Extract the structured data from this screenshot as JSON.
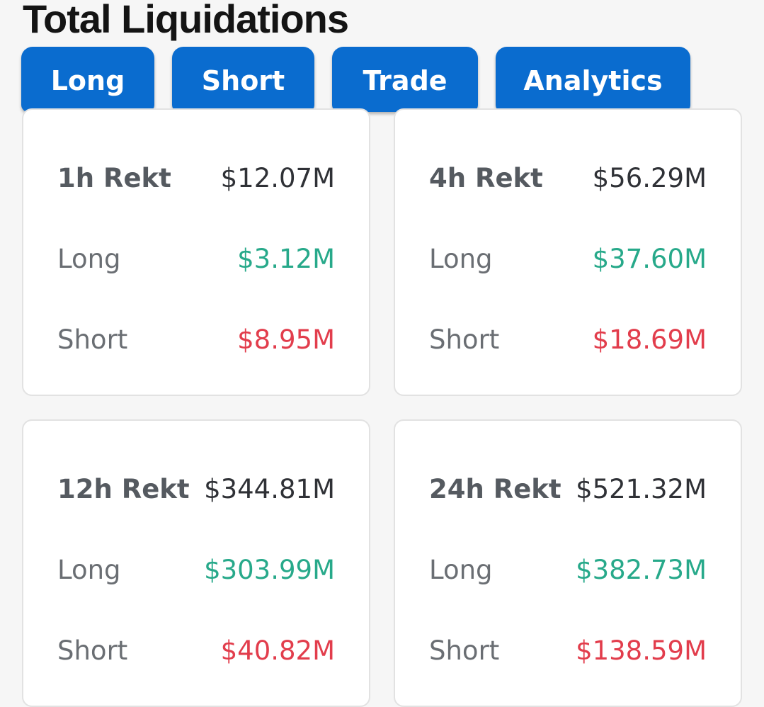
{
  "title": "Total Liquidations",
  "tabs": [
    {
      "label": "Long"
    },
    {
      "label": "Short"
    },
    {
      "label": "Trade"
    },
    {
      "label": "Analytics"
    }
  ],
  "colors": {
    "tab_bg": "#0a6ccf",
    "long_value": "#27a98a",
    "short_value": "#e23d4c",
    "card_bg": "#ffffff",
    "page_bg": "#f6f6f6"
  },
  "cards": [
    {
      "period_label": "1h Rekt",
      "total": "$12.07M",
      "long_label": "Long",
      "long_value": "$3.12M",
      "short_label": "Short",
      "short_value": "$8.95M"
    },
    {
      "period_label": "4h Rekt",
      "total": "$56.29M",
      "long_label": "Long",
      "long_value": "$37.60M",
      "short_label": "Short",
      "short_value": "$18.69M"
    },
    {
      "period_label": "12h Rekt",
      "total": "$344.81M",
      "long_label": "Long",
      "long_value": "$303.99M",
      "short_label": "Short",
      "short_value": "$40.82M"
    },
    {
      "period_label": "24h Rekt",
      "total": "$521.32M",
      "long_label": "Long",
      "long_value": "$382.73M",
      "short_label": "Short",
      "short_value": "$138.59M"
    }
  ]
}
